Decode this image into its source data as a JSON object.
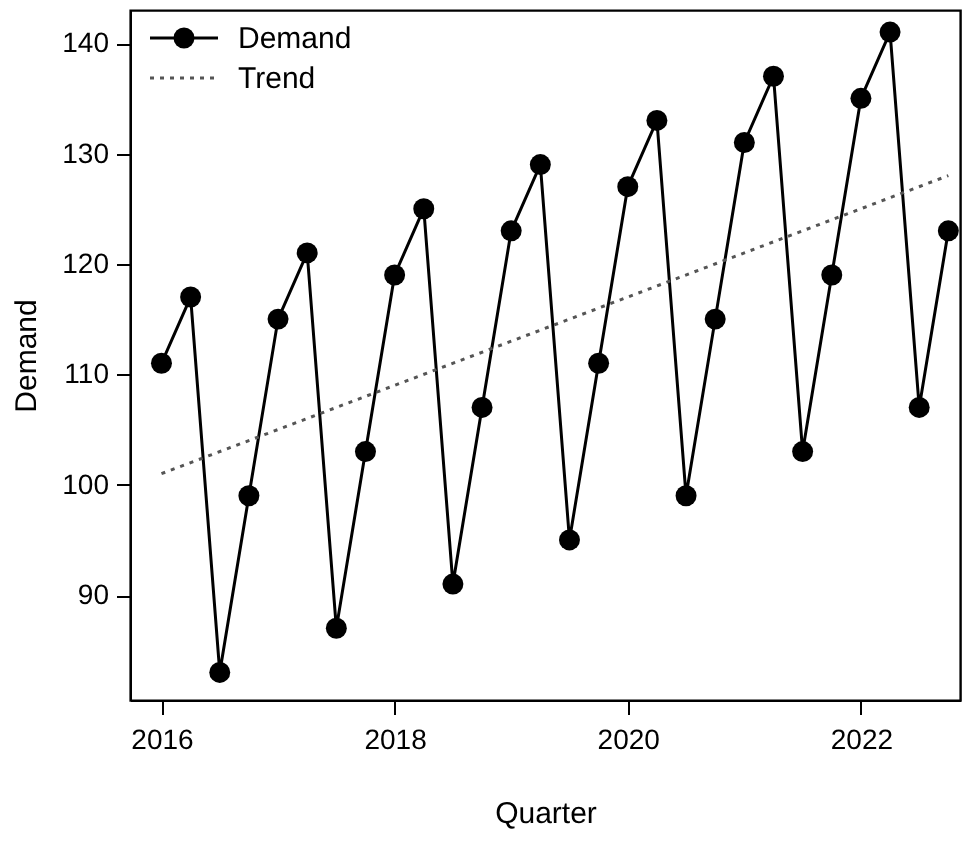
{
  "chart_data": {
    "type": "line",
    "xlabel": "Quarter",
    "ylabel": "Demand",
    "x": [
      2016,
      2016.25,
      2016.5,
      2016.75,
      2017,
      2017.25,
      2017.5,
      2017.75,
      2018,
      2018.25,
      2018.5,
      2018.75,
      2019,
      2019.25,
      2019.5,
      2019.75,
      2020,
      2020.25,
      2020.5,
      2020.75,
      2021,
      2021.25,
      2021.5,
      2021.75,
      2022,
      2022.25,
      2022.5,
      2022.75
    ],
    "series": [
      {
        "name": "Demand",
        "color": "#000000",
        "marker": "circle",
        "line_style": "solid",
        "values": [
          111,
          117,
          83,
          99,
          115,
          121,
          87,
          103,
          119,
          125,
          91,
          107,
          123,
          129,
          95,
          111,
          127,
          133,
          99,
          115,
          131,
          137,
          103,
          119,
          135,
          141,
          107,
          123
        ]
      },
      {
        "name": "Trend",
        "color": "#555555",
        "marker": "none",
        "line_style": "dotted",
        "x": [
          2016,
          2022.75
        ],
        "values": [
          101,
          128
        ]
      }
    ],
    "xlim": [
      2015.73,
      2022.85
    ],
    "ylim": [
      80.5,
      143
    ],
    "xticks": [
      2016,
      2018,
      2020,
      2022
    ],
    "yticks": [
      90,
      100,
      110,
      120,
      130,
      140
    ],
    "grid": false,
    "legend": "top left"
  }
}
